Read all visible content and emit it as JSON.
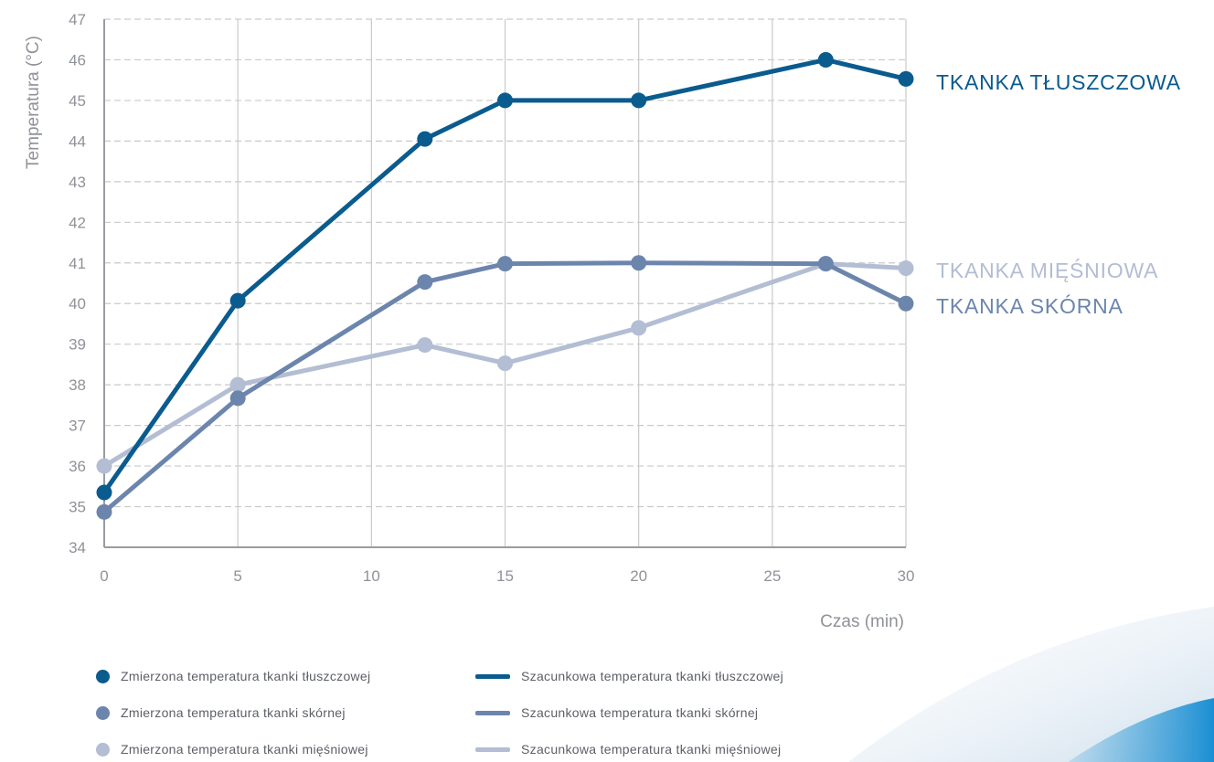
{
  "colors": {
    "fat": "#0a5b8e",
    "skin": "#6c85ad",
    "muscle": "#b3bdd3",
    "grid": "#c8c9cc",
    "axis": "#9a9ca2",
    "text": "#8f9298"
  },
  "chart_data": {
    "type": "line",
    "ylabel": "Temperatura (°C)",
    "xlabel": "Czas (min)",
    "xlim": [
      0,
      30
    ],
    "ylim": [
      34,
      47
    ],
    "x_ticks": [
      0,
      5,
      10,
      15,
      20,
      25,
      30
    ],
    "y_ticks": [
      34,
      35,
      36,
      37,
      38,
      39,
      40,
      41,
      42,
      43,
      44,
      45,
      46,
      47
    ],
    "grid": true,
    "series": [
      {
        "key": "fat",
        "name": "TKANKA TŁUSZCZOWA",
        "color": "#0a5b8e",
        "x": [
          0,
          5,
          12,
          15,
          20,
          27,
          30
        ],
        "y": [
          35.35,
          40.07,
          44.05,
          45.0,
          45.0,
          46.0,
          45.53
        ]
      },
      {
        "key": "skin",
        "name": "TKANKA SKÓRNA",
        "color": "#6c85ad",
        "x": [
          0,
          5,
          12,
          15,
          20,
          27,
          30
        ],
        "y": [
          34.87,
          37.67,
          40.53,
          40.98,
          41.0,
          40.98,
          40.0
        ]
      },
      {
        "key": "muscle",
        "name": "TKANKA MIĘŚNIOWA",
        "color": "#b3bdd3",
        "x": [
          0,
          5,
          12,
          15,
          20,
          27,
          30
        ],
        "y": [
          36.0,
          38.0,
          38.98,
          38.53,
          39.4,
          40.98,
          40.87
        ]
      }
    ]
  },
  "legend": {
    "items": [
      {
        "kind": "dot",
        "series": "fat",
        "label": "Zmierzona temperatura tkanki tłuszczowej"
      },
      {
        "kind": "line",
        "series": "fat",
        "label": "Szacunkowa temperatura tkanki tłuszczowej"
      },
      {
        "kind": "dot",
        "series": "skin",
        "label": "Zmierzona temperatura tkanki skórnej"
      },
      {
        "kind": "line",
        "series": "skin",
        "label": "Szacunkowa temperatura tkanki skórnej"
      },
      {
        "kind": "dot",
        "series": "muscle",
        "label": "Zmierzona temperatura tkanki mięśniowej"
      },
      {
        "kind": "line",
        "series": "muscle",
        "label": "Szacunkowa temperatura tkanki mięśniowej"
      }
    ]
  }
}
